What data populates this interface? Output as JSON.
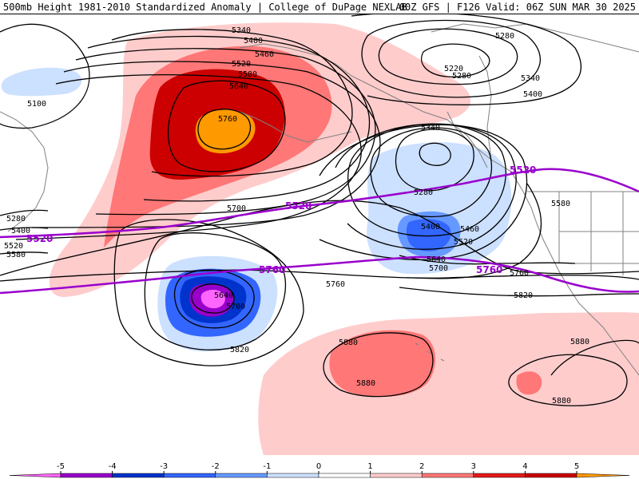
{
  "header": {
    "title_left": "500mb Height 1981-2010 Standardized Anomaly | College of DuPage NEXLAB",
    "title_right": "00Z GFS | F126 Valid: 06Z SUN MAR 30 2025"
  },
  "map": {
    "height_labels": [
      {
        "id": "h5340a",
        "text": "5340"
      },
      {
        "id": "h5400a",
        "text": "5400"
      },
      {
        "id": "h5460a",
        "text": "5460"
      },
      {
        "id": "h5520a",
        "text": "5520"
      },
      {
        "id": "h5580a",
        "text": "5580"
      },
      {
        "id": "h5640a",
        "text": "5640"
      },
      {
        "id": "h5760a",
        "text": "5760"
      },
      {
        "id": "h5100",
        "text": "5100"
      },
      {
        "id": "h5280w",
        "text": "5280"
      },
      {
        "id": "h5400w",
        "text": "5400"
      },
      {
        "id": "h5520w",
        "text": "5520"
      },
      {
        "id": "h5580w",
        "text": "5580"
      },
      {
        "id": "h5700m",
        "text": "5700"
      },
      {
        "id": "h5340c",
        "text": "5340"
      },
      {
        "id": "h5280c",
        "text": "5280"
      },
      {
        "id": "h5400c",
        "text": "5400"
      },
      {
        "id": "h5460c",
        "text": "5460"
      },
      {
        "id": "h5520c",
        "text": "5520"
      },
      {
        "id": "h5640c",
        "text": "5640"
      },
      {
        "id": "h5700c",
        "text": "5700"
      },
      {
        "id": "h5280ne",
        "text": "5280"
      },
      {
        "id": "h5220ne",
        "text": "5220"
      },
      {
        "id": "h5280ne2",
        "text": "5280"
      },
      {
        "id": "h5340ne",
        "text": "5340"
      },
      {
        "id": "h5400ne",
        "text": "5400"
      },
      {
        "id": "h5580e",
        "text": "5580"
      },
      {
        "id": "h5760e",
        "text": "5760"
      },
      {
        "id": "h5820e",
        "text": "5820"
      },
      {
        "id": "h5760s",
        "text": "5760"
      },
      {
        "id": "h5640s",
        "text": "5640"
      },
      {
        "id": "h5700s",
        "text": "5700"
      },
      {
        "id": "h5820s",
        "text": "5820"
      },
      {
        "id": "h5880a",
        "text": "5880"
      },
      {
        "id": "h5880b",
        "text": "5880"
      },
      {
        "id": "h5880c",
        "text": "5880"
      },
      {
        "id": "h5880d",
        "text": "5880"
      }
    ],
    "reference_lines": [
      {
        "id": "ref5520",
        "label": "5520",
        "color": "#9900cc"
      },
      {
        "id": "ref5760",
        "label": "5760",
        "color": "#9900cc"
      }
    ],
    "colors": {
      "ocean": "#ffffff",
      "contour": "#000000",
      "coastline": "#808080",
      "reference": "#9900cc"
    }
  },
  "legend": {
    "ticks": [
      "-5",
      "-4",
      "-3",
      "-2",
      "-1",
      "0",
      "1",
      "2",
      "3",
      "4",
      "5"
    ],
    "bins": [
      {
        "range": "<-5",
        "color": "#ff66ff"
      },
      {
        "range": "-5 to -4",
        "color": "#9900cc"
      },
      {
        "range": "-4 to -3",
        "color": "#0033cc"
      },
      {
        "range": "-3 to -2",
        "color": "#3366ff"
      },
      {
        "range": "-2 to -1",
        "color": "#6699ff"
      },
      {
        "range": "-1 to 0",
        "color": "#cce0ff"
      },
      {
        "range": "0 to 1",
        "color": "#ffffff"
      },
      {
        "range": "1 to 2",
        "color": "#ffcccc"
      },
      {
        "range": "2 to 3",
        "color": "#ff7777"
      },
      {
        "range": "3 to 4",
        "color": "#e61919"
      },
      {
        "range": "4 to 5",
        "color": "#cc0000"
      },
      {
        "range": ">5",
        "color": "#ff9900"
      }
    ]
  }
}
